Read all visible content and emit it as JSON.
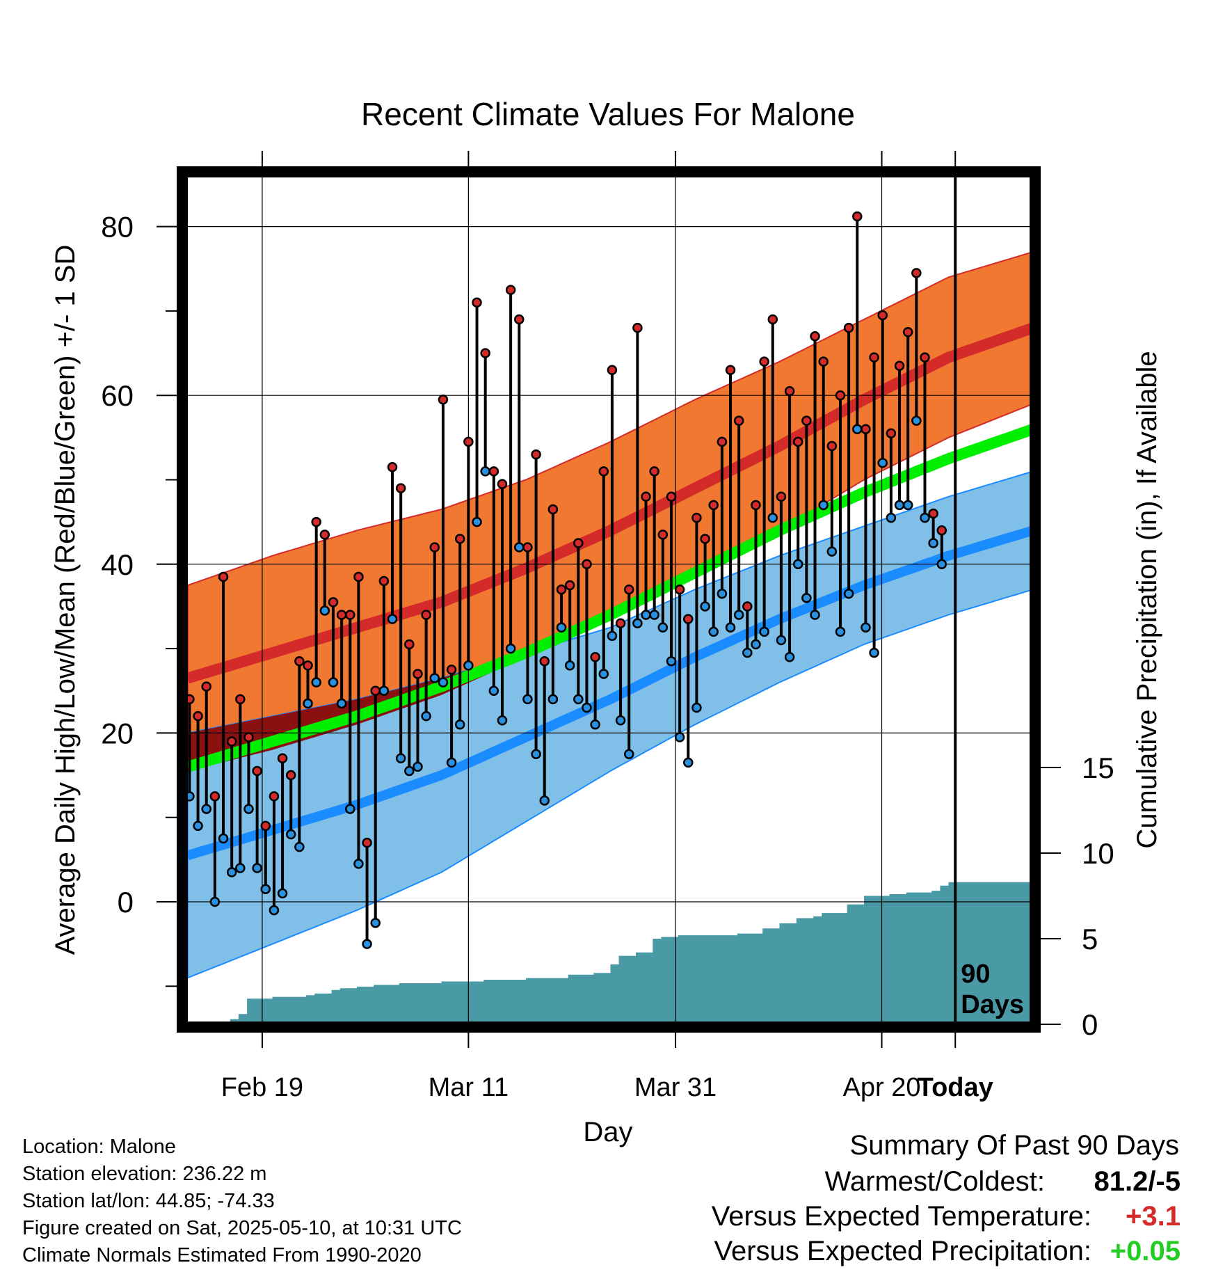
{
  "chart_data": {
    "type": "line",
    "title": "Recent Climate Values For Malone",
    "xlabel": "Day",
    "ylabel": "Average Daily High/Low/Mean (Red/Blue/Green) +/- 1 SD",
    "y2label": "Cumulative Precipitation (in), If Available",
    "x_ticks": [
      "Feb 19",
      "Mar 11",
      "Mar 31",
      "Apr 20",
      "Today"
    ],
    "y_ticks": [
      0,
      20,
      40,
      60,
      80
    ],
    "y2_ticks": [
      0,
      5,
      10,
      15
    ],
    "ylim": [
      -14.5,
      87.5
    ],
    "y2lim": [
      0,
      17
    ],
    "today_marker": "90 Days",
    "colors": {
      "high_band": "#f07830",
      "high_mean": "#d42a2a",
      "low_band": "#80c0e8",
      "low_mean": "#1a8cff",
      "mean_line": "#00ee00",
      "overlap": "#8b1010",
      "precip": "#4a9aa5",
      "high_dot": "#d42a2a",
      "low_dot": "#2a90e0"
    },
    "normals": {
      "day": [
        0,
        10,
        20,
        30,
        40,
        50,
        60,
        70,
        80,
        90,
        100
      ],
      "high_mean": [
        26.5,
        29.5,
        32.5,
        35.5,
        39.5,
        44.0,
        49.0,
        54.0,
        59.5,
        64.5,
        68.0
      ],
      "high_sd": [
        11.0,
        11.5,
        11.5,
        11.0,
        10.5,
        10.5,
        10.5,
        10.0,
        9.5,
        9.5,
        9.0
      ],
      "low_mean": [
        5.5,
        8.5,
        11.5,
        15.0,
        19.5,
        24.0,
        29.0,
        33.5,
        37.5,
        41.0,
        44.0
      ],
      "low_sd": [
        14.5,
        13.5,
        12.5,
        11.5,
        10.0,
        8.5,
        8.0,
        7.5,
        7.0,
        7.0,
        7.0
      ],
      "mean": [
        16.0,
        19.0,
        22.0,
        25.5,
        29.5,
        34.0,
        39.0,
        44.0,
        48.5,
        52.5,
        56.0
      ]
    },
    "observations": {
      "day": [
        0,
        1,
        2,
        3,
        4,
        5,
        6,
        7,
        8,
        9,
        10,
        11,
        12,
        13,
        14,
        15,
        16,
        17,
        18,
        19,
        20,
        21,
        22,
        23,
        24,
        25,
        26,
        27,
        28,
        29,
        30,
        31,
        32,
        33,
        34,
        35,
        36,
        37,
        38,
        39,
        40,
        41,
        42,
        43,
        44,
        45,
        46,
        47,
        48,
        49,
        50,
        51,
        52,
        53,
        54,
        55,
        56,
        57,
        58,
        59,
        60,
        61,
        62,
        63,
        64,
        65,
        66,
        67,
        68,
        69,
        70,
        71,
        72,
        73,
        74,
        75,
        76,
        77,
        78,
        79,
        80,
        81,
        82,
        83,
        84,
        85,
        86,
        87,
        88,
        89
      ],
      "high": [
        24,
        22,
        25.5,
        12.5,
        38.5,
        19,
        24,
        19.5,
        15.5,
        9,
        12.5,
        17,
        15,
        28.5,
        28,
        45,
        43.5,
        35.5,
        34,
        34,
        38.5,
        7,
        25,
        38,
        51.5,
        49,
        30.5,
        27,
        34,
        42,
        59.5,
        27.5,
        43,
        54.5,
        71,
        65,
        51,
        49.5,
        72.5,
        69,
        42,
        53,
        28.5,
        46.5,
        37,
        37.5,
        42.5,
        40,
        29,
        51,
        63,
        33,
        37,
        68,
        48,
        51,
        43.5,
        48,
        37,
        33.5,
        45.5,
        43,
        47,
        54.5,
        63,
        57,
        35,
        47,
        64,
        69,
        48,
        60.5,
        54.5,
        57,
        67,
        64,
        54,
        60,
        68,
        81.2,
        56,
        64.5,
        69.5,
        55.5,
        63.5,
        67.5,
        74.5,
        64.5,
        46,
        44
      ],
      "low": [
        12.5,
        9,
        11,
        0,
        7.5,
        3.5,
        4,
        11,
        4,
        1.5,
        -1,
        1,
        8,
        6.5,
        23.5,
        26,
        34.5,
        26,
        23.5,
        11,
        4.5,
        -5,
        -2.5,
        25,
        33.5,
        17,
        15.5,
        16,
        22,
        26.5,
        26,
        16.5,
        21,
        28,
        45,
        51,
        25,
        21.5,
        30,
        42,
        24,
        17.5,
        12,
        24,
        32.5,
        28,
        24,
        23,
        21,
        27,
        31.5,
        21.5,
        17.5,
        33,
        34,
        34,
        32.5,
        28.5,
        19.5,
        16.5,
        23,
        35,
        32,
        36.5,
        32.5,
        34,
        29.5,
        30.5,
        32,
        45.5,
        31,
        29,
        40,
        36,
        34,
        47,
        41.5,
        32,
        36.5,
        56,
        32.5,
        29.5,
        52,
        45.5,
        47,
        47,
        57,
        45.5,
        42.5,
        40
      ]
    },
    "precip": {
      "day": [
        4,
        5,
        6,
        7,
        8,
        10,
        14,
        15,
        17,
        18,
        20,
        22,
        25,
        30,
        35,
        40,
        45,
        48,
        50,
        51,
        53,
        55,
        56,
        58,
        60,
        65,
        68,
        70,
        72,
        74,
        75,
        78,
        80,
        83,
        85,
        88,
        89,
        90,
        100
      ],
      "cum": [
        0,
        0.3,
        0.6,
        1.5,
        1.5,
        1.6,
        1.7,
        1.8,
        2.0,
        2.1,
        2.2,
        2.3,
        2.4,
        2.5,
        2.6,
        2.7,
        2.9,
        3.0,
        3.5,
        4.0,
        4.2,
        5.0,
        5.1,
        5.2,
        5.2,
        5.3,
        5.6,
        5.9,
        6.2,
        6.3,
        6.5,
        7.0,
        7.5,
        7.6,
        7.7,
        7.8,
        8.1,
        8.3,
        8.3
      ]
    }
  },
  "info": {
    "location": "Location: Malone",
    "elevation": "Station elevation: 236.22 m",
    "latlon": "Station lat/lon: 44.85; -74.33",
    "created": "Figure created on Sat, 2025-05-10, at 10:31 UTC",
    "normals": "Climate Normals Estimated From 1990-2020"
  },
  "summary": {
    "title": "Summary Of Past 90 Days",
    "warm_cold_label": "Warmest/Coldest:",
    "warm_cold_value": "81.2/-5",
    "temp_label": "Versus Expected Temperature:",
    "temp_value": "+3.1",
    "temp_color": "#d42a2a",
    "precip_label": "Versus Expected Precipitation:",
    "precip_value": "+0.05",
    "precip_color": "#22cc22"
  }
}
